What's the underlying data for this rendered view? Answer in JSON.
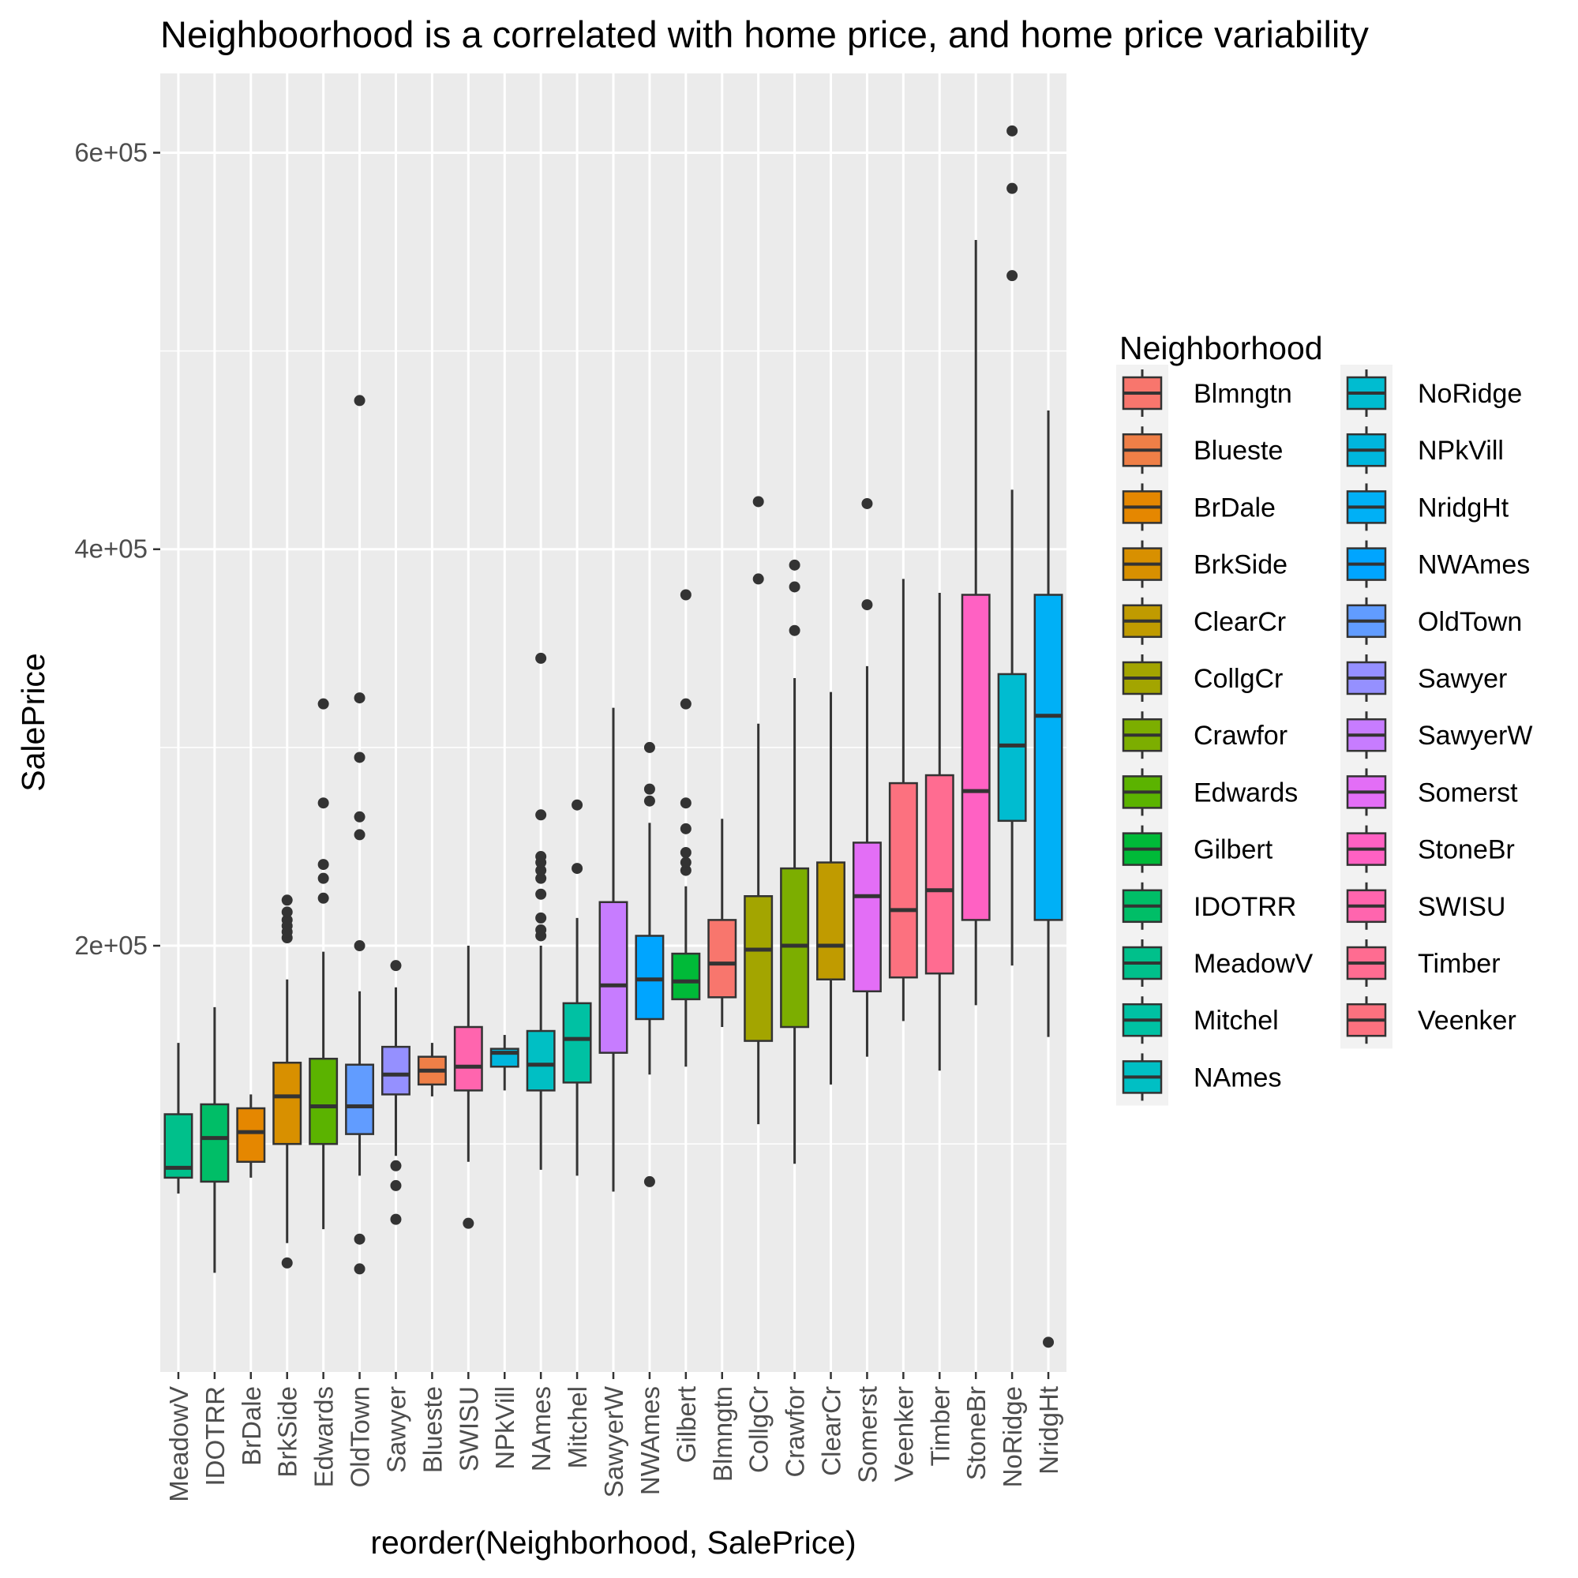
{
  "chart_data": {
    "type": "boxplot",
    "title": "Neighboorhood is a correlated with home price, and home price variability",
    "xlabel": "reorder(Neighborhood, SalePrice)",
    "ylabel": "SalePrice",
    "ylim": [
      -15000,
      640000
    ],
    "y_ticks": [
      200000,
      400000,
      600000
    ],
    "y_tick_labels": [
      "2e+05",
      "4e+05",
      "6e+05"
    ],
    "grid": true,
    "legend": {
      "title": "Neighborhood",
      "position": "right",
      "columns": 2,
      "items": [
        "Blmngtn",
        "Blueste",
        "BrDale",
        "BrkSide",
        "ClearCr",
        "CollgCr",
        "Crawfor",
        "Edwards",
        "Gilbert",
        "IDOTRR",
        "MeadowV",
        "Mitchel",
        "NAmes",
        "NoRidge",
        "NPkVill",
        "NridgHt",
        "NWAmes",
        "OldTown",
        "Sawyer",
        "SawyerW",
        "Somerst",
        "StoneBr",
        "SWISU",
        "Timber",
        "Veenker"
      ]
    },
    "colors": {
      "Blmngtn": "#F8766D",
      "Blueste": "#EF7F47",
      "BrDale": "#E58700",
      "BrkSide": "#D89000",
      "ClearCr": "#C09B00",
      "CollgCr": "#A3A500",
      "Crawfor": "#7CAE00",
      "Edwards": "#5BB300",
      "Gilbert": "#00BA38",
      "IDOTRR": "#00BE67",
      "MeadowV": "#00C08B",
      "Mitchel": "#00C1A3",
      "NAmes": "#00BFC4",
      "NoRidge": "#00BCD0",
      "NPkVill": "#00B6DD",
      "NridgHt": "#00B0F6",
      "NWAmes": "#00A5FF",
      "OldTown": "#619CFF",
      "Sawyer": "#9590FF",
      "SawyerW": "#C77CFF",
      "Somerst": "#E36EF6",
      "StoneBr": "#FF61C3",
      "SWISU": "#FF65AE",
      "Timber": "#FF6C91",
      "Veenker": "#FC717F"
    },
    "categories": [
      "MeadowV",
      "IDOTRR",
      "BrDale",
      "BrkSide",
      "Edwards",
      "OldTown",
      "Sawyer",
      "Blueste",
      "SWISU",
      "NPkVill",
      "NAmes",
      "Mitchel",
      "SawyerW",
      "NWAmes",
      "Gilbert",
      "Blmngtn",
      "CollgCr",
      "Crawfor",
      "ClearCr",
      "Somerst",
      "Veenker",
      "Timber",
      "StoneBr",
      "NoRidge",
      "NridgHt"
    ],
    "series": [
      {
        "category": "MeadowV",
        "min": 75000,
        "q1": 83000,
        "median": 88000,
        "q3": 115000,
        "max": 151000,
        "outliers": []
      },
      {
        "category": "IDOTRR",
        "min": 35000,
        "q1": 81000,
        "median": 103000,
        "q3": 120000,
        "max": 169000,
        "outliers": []
      },
      {
        "category": "BrDale",
        "min": 83000,
        "q1": 91000,
        "median": 106000,
        "q3": 118000,
        "max": 125000,
        "outliers": []
      },
      {
        "category": "BrkSide",
        "min": 50000,
        "q1": 100000,
        "median": 124000,
        "q3": 141000,
        "max": 183000,
        "outliers": [
          40000,
          204000,
          207000,
          210000,
          213000,
          217000,
          223000
        ]
      },
      {
        "category": "Edwards",
        "min": 57000,
        "q1": 100000,
        "median": 119000,
        "q3": 143000,
        "max": 197000,
        "outliers": [
          224000,
          234000,
          241000,
          272000,
          322000
        ]
      },
      {
        "category": "OldTown",
        "min": 84000,
        "q1": 105000,
        "median": 119000,
        "q3": 140000,
        "max": 177000,
        "outliers": [
          37000,
          52000,
          200000,
          256000,
          265000,
          295000,
          325000,
          475000
        ]
      },
      {
        "category": "Sawyer",
        "min": 94000,
        "q1": 125000,
        "median": 135000,
        "q3": 149000,
        "max": 179000,
        "outliers": [
          62000,
          79000,
          89000,
          190000
        ]
      },
      {
        "category": "Blueste",
        "min": 124000,
        "q1": 130000,
        "median": 137000,
        "q3": 144000,
        "max": 151000,
        "outliers": []
      },
      {
        "category": "SWISU",
        "min": 91000,
        "q1": 127000,
        "median": 139000,
        "q3": 159000,
        "max": 200000,
        "outliers": [
          60000
        ]
      },
      {
        "category": "NPkVill",
        "min": 127000,
        "q1": 139000,
        "median": 146000,
        "q3": 148000,
        "max": 155000,
        "outliers": []
      },
      {
        "category": "NAmes",
        "min": 87000,
        "q1": 127000,
        "median": 140000,
        "q3": 157000,
        "max": 200000,
        "outliers": [
          205000,
          208000,
          214000,
          226000,
          234000,
          238000,
          242000,
          245000,
          266000,
          345000
        ]
      },
      {
        "category": "Mitchel",
        "min": 84000,
        "q1": 131000,
        "median": 153000,
        "q3": 171000,
        "max": 214000,
        "outliers": [
          239000,
          271000
        ]
      },
      {
        "category": "SawyerW",
        "min": 76000,
        "q1": 146000,
        "median": 180000,
        "q3": 222000,
        "max": 320000,
        "outliers": []
      },
      {
        "category": "NWAmes",
        "min": 135000,
        "q1": 163000,
        "median": 183000,
        "q3": 205000,
        "max": 262000,
        "outliers": [
          81000,
          273000,
          279000,
          300000
        ]
      },
      {
        "category": "Gilbert",
        "min": 139000,
        "q1": 173000,
        "median": 182000,
        "q3": 196000,
        "max": 230000,
        "outliers": [
          238000,
          242000,
          247000,
          259000,
          272000,
          322000,
          377000
        ]
      },
      {
        "category": "Blmngtn",
        "min": 159000,
        "q1": 174000,
        "median": 191000,
        "q3": 213000,
        "max": 264000,
        "outliers": []
      },
      {
        "category": "CollgCr",
        "min": 110000,
        "q1": 152000,
        "median": 198000,
        "q3": 225000,
        "max": 312000,
        "outliers": [
          385000,
          424000
        ]
      },
      {
        "category": "Crawfor",
        "min": 90000,
        "q1": 159000,
        "median": 200000,
        "q3": 239000,
        "max": 335000,
        "outliers": [
          359000,
          381000,
          392000
        ]
      },
      {
        "category": "ClearCr",
        "min": 130000,
        "q1": 183000,
        "median": 200000,
        "q3": 242000,
        "max": 328000,
        "outliers": []
      },
      {
        "category": "Somerst",
        "min": 144000,
        "q1": 177000,
        "median": 225000,
        "q3": 252000,
        "max": 341000,
        "outliers": [
          372000,
          423000
        ]
      },
      {
        "category": "Veenker",
        "min": 162000,
        "q1": 184000,
        "median": 218000,
        "q3": 282000,
        "max": 385000,
        "outliers": []
      },
      {
        "category": "Timber",
        "min": 137000,
        "q1": 186000,
        "median": 228000,
        "q3": 286000,
        "max": 378000,
        "outliers": []
      },
      {
        "category": "StoneBr",
        "min": 170000,
        "q1": 213000,
        "median": 278000,
        "q3": 377000,
        "max": 556000,
        "outliers": []
      },
      {
        "category": "NoRidge",
        "min": 190000,
        "q1": 263000,
        "median": 301000,
        "q3": 337000,
        "max": 430000,
        "outliers": [
          538000,
          582000,
          611000
        ]
      },
      {
        "category": "NridgHt",
        "min": 154000,
        "q1": 213000,
        "median": 316000,
        "q3": 377000,
        "max": 470000,
        "outliers": [
          0
        ]
      }
    ]
  }
}
